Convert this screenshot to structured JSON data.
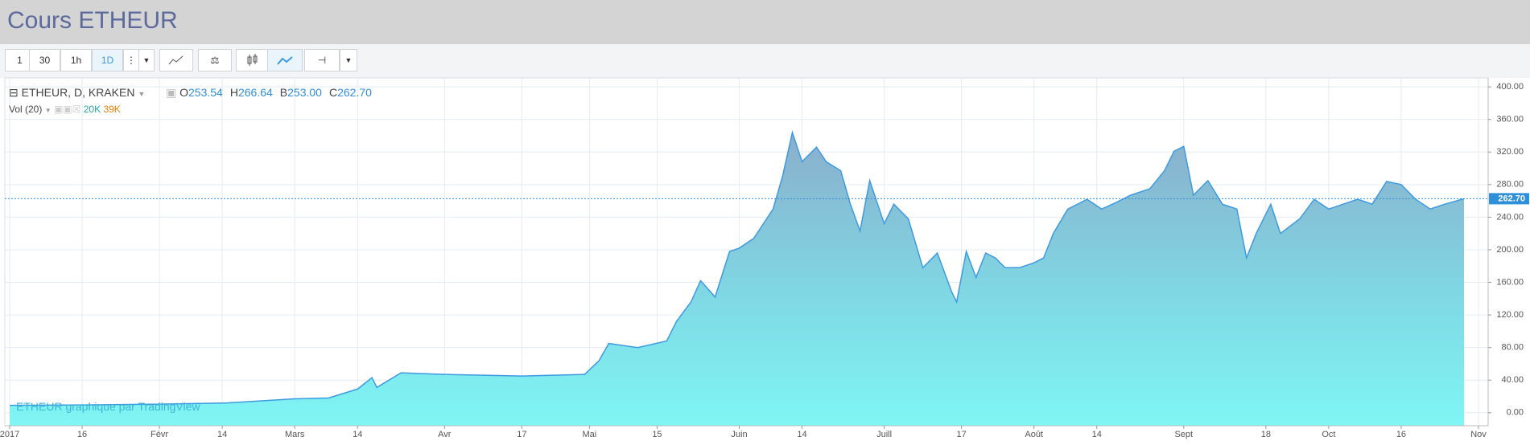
{
  "header": {
    "title": "Cours ETHEUR"
  },
  "toolbar": {
    "intervals": [
      "1",
      "30",
      "1h",
      "1D"
    ],
    "active": "1D"
  },
  "legend": {
    "symbol": "ETHEUR, D, KRAKEN",
    "ohlc": [
      {
        "key": "O",
        "value": "253.54"
      },
      {
        "key": "H",
        "value": "266.64"
      },
      {
        "key": "B",
        "value": "253.00"
      },
      {
        "key": "C",
        "value": "262.70"
      }
    ],
    "volume": {
      "name": "Vol (20)",
      "values": [
        "20K",
        "39K"
      ]
    }
  },
  "watermark": "ETHEUR graphique par TradingView",
  "chart_data": {
    "type": "area",
    "x": [
      "2017-01-01",
      "2017-01-16",
      "2017-02-01",
      "2017-02-15",
      "2017-03-01",
      "2017-03-08",
      "2017-03-14",
      "2017-03-17",
      "2017-03-18",
      "2017-03-23",
      "2017-04-01",
      "2017-04-17",
      "2017-04-30",
      "2017-05-03",
      "2017-05-05",
      "2017-05-11",
      "2017-05-17",
      "2017-05-19",
      "2017-05-22",
      "2017-05-24",
      "2017-05-27",
      "2017-05-30",
      "2017-06-01",
      "2017-06-04",
      "2017-06-06",
      "2017-06-08",
      "2017-06-10",
      "2017-06-12",
      "2017-06-14",
      "2017-06-17",
      "2017-06-19",
      "2017-06-22",
      "2017-06-24",
      "2017-06-26",
      "2017-06-28",
      "2017-07-01",
      "2017-07-03",
      "2017-07-06",
      "2017-07-09",
      "2017-07-12",
      "2017-07-15",
      "2017-07-16",
      "2017-07-18",
      "2017-07-20",
      "2017-07-22",
      "2017-07-24",
      "2017-07-26",
      "2017-07-29",
      "2017-08-01",
      "2017-08-03",
      "2017-08-05",
      "2017-08-08",
      "2017-08-12",
      "2017-08-15",
      "2017-08-18",
      "2017-08-21",
      "2017-08-25",
      "2017-08-28",
      "2017-08-30",
      "2017-09-01",
      "2017-09-03",
      "2017-09-06",
      "2017-09-09",
      "2017-09-12",
      "2017-09-14",
      "2017-09-16",
      "2017-09-19",
      "2017-09-21",
      "2017-09-25",
      "2017-09-28",
      "2017-10-01",
      "2017-10-04",
      "2017-10-07",
      "2017-10-10",
      "2017-10-13",
      "2017-10-16",
      "2017-10-19",
      "2017-10-22",
      "2017-10-25",
      "2017-10-29"
    ],
    "series": [
      {
        "name": "ETHEUR",
        "color": "#3d9ae0",
        "values": [
          9,
          9.5,
          10.5,
          12,
          17,
          18,
          29,
          43,
          31,
          49,
          47,
          45,
          47,
          64,
          85,
          80,
          88,
          112,
          136,
          162,
          142,
          198,
          202,
          214,
          232,
          250,
          291,
          344,
          308,
          326,
          308,
          297,
          256,
          223,
          285,
          232,
          256,
          238,
          178,
          196,
          148,
          136,
          198,
          166,
          196,
          190,
          178,
          178,
          184,
          190,
          220,
          250,
          262,
          250,
          258,
          267,
          275,
          297,
          321,
          327,
          267,
          285,
          256,
          250,
          190,
          220,
          256,
          220,
          238,
          262,
          250,
          256,
          262,
          256,
          284,
          280,
          262,
          250,
          256,
          262.7
        ]
      }
    ],
    "xlim": [
      "2016-12-31",
      "2017-11-03"
    ],
    "xticks": [
      {
        "value": "2017-01-01",
        "label": "2017"
      },
      {
        "value": "2017-01-16",
        "label": "16"
      },
      {
        "value": "2017-02-01",
        "label": "Févr"
      },
      {
        "value": "2017-02-14",
        "label": "14"
      },
      {
        "value": "2017-03-01",
        "label": "Mars"
      },
      {
        "value": "2017-03-14",
        "label": "14"
      },
      {
        "value": "2017-04-01",
        "label": "Avr"
      },
      {
        "value": "2017-04-17",
        "label": "17"
      },
      {
        "value": "2017-05-01",
        "label": "Mai"
      },
      {
        "value": "2017-05-15",
        "label": "15"
      },
      {
        "value": "2017-06-01",
        "label": "Juin"
      },
      {
        "value": "2017-06-14",
        "label": "14"
      },
      {
        "value": "2017-07-01",
        "label": "Juill"
      },
      {
        "value": "2017-07-17",
        "label": "17"
      },
      {
        "value": "2017-08-01",
        "label": "Août"
      },
      {
        "value": "2017-08-14",
        "label": "14"
      },
      {
        "value": "2017-09-01",
        "label": "Sept"
      },
      {
        "value": "2017-09-18",
        "label": "18"
      },
      {
        "value": "2017-10-01",
        "label": "Oct"
      },
      {
        "value": "2017-10-16",
        "label": "16"
      },
      {
        "value": "2017-11-01",
        "label": "Nov"
      }
    ],
    "ylim": [
      -16,
      411
    ],
    "yticks": [
      {
        "value": 0,
        "label": "0.00"
      },
      {
        "value": 40,
        "label": "40.00"
      },
      {
        "value": 80,
        "label": "80.00"
      },
      {
        "value": 120,
        "label": "120.00"
      },
      {
        "value": 160,
        "label": "160.00"
      },
      {
        "value": 200,
        "label": "200.00"
      },
      {
        "value": 240,
        "label": "240.00"
      },
      {
        "value": 280,
        "label": "280.00"
      },
      {
        "value": 320,
        "label": "320.00"
      },
      {
        "value": 360,
        "label": "360.00"
      },
      {
        "value": 400,
        "label": "400.00"
      }
    ],
    "last_price": {
      "value": 262.7,
      "label": "262.70"
    },
    "grid": true
  }
}
